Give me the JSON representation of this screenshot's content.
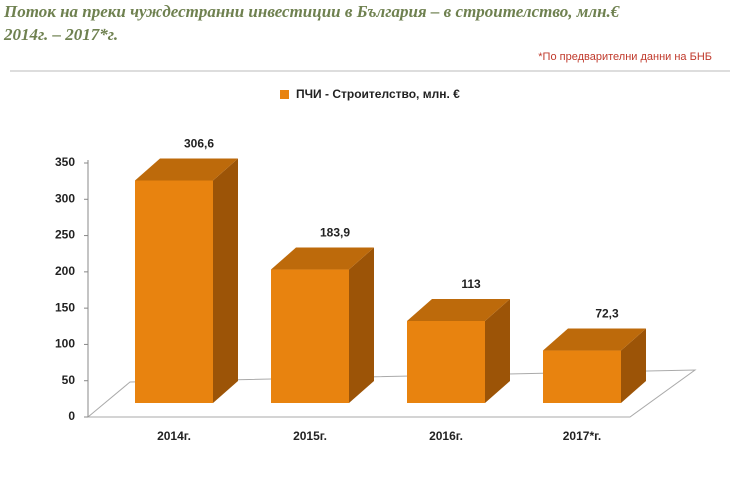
{
  "chart_data": {
    "type": "bar3d",
    "title": "Поток на преки чуждестранни инвестиции в България – в строителство, млн.€",
    "subtitle": "2014г. – 2017*г.",
    "note": "*По предварителни данни на БНБ",
    "categories": [
      "2014г.",
      "2015г.",
      "2016г.",
      "2017*г."
    ],
    "series": [
      {
        "name": "ПЧИ - Строителство, млн. €",
        "color": "#e8830f",
        "values": [
          306.6,
          183.9,
          113,
          72.3
        ],
        "value_labels": [
          "306,6",
          "183,9",
          "113",
          "72,3"
        ]
      }
    ],
    "ylim": [
      0,
      350
    ],
    "yticks": [
      0,
      50,
      100,
      150,
      200,
      250,
      300,
      350
    ]
  }
}
